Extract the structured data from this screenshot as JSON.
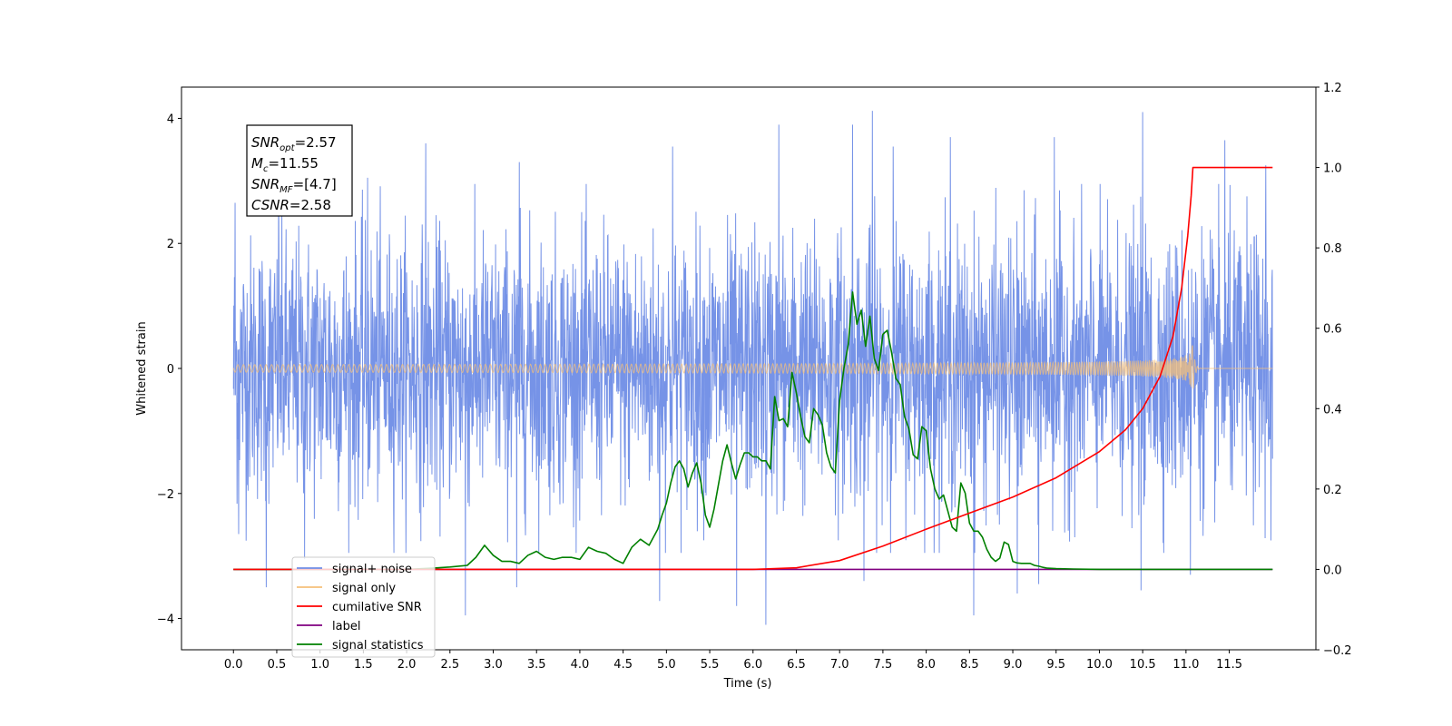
{
  "chart_data": {
    "type": "line",
    "xlabel": "Time (s)",
    "ylabel_left": "Whitened strain",
    "xlim": [
      -0.6,
      12.5
    ],
    "ylim_left": [
      -4.5,
      4.5
    ],
    "ylim_right": [
      -0.2,
      1.2
    ],
    "x_ticks": [
      0.0,
      0.5,
      1.0,
      1.5,
      2.0,
      2.5,
      3.0,
      3.5,
      4.0,
      4.5,
      5.0,
      5.5,
      6.0,
      6.5,
      7.0,
      7.5,
      8.0,
      8.5,
      9.0,
      9.5,
      10.0,
      10.5,
      11.0,
      11.5
    ],
    "x_tick_labels": [
      "0.0",
      "0.5",
      "1.0",
      "1.5",
      "2.0",
      "2.5",
      "3.0",
      "3.5",
      "4.0",
      "4.5",
      "5.0",
      "5.5",
      "6.0",
      "6.5",
      "7.0",
      "7.5",
      "8.0",
      "8.5",
      "9.0",
      "9.5",
      "10.0",
      "10.5",
      "11.0",
      "11.5"
    ],
    "y_left_ticks": [
      -4,
      -2,
      0,
      2,
      4
    ],
    "y_left_tick_labels": [
      "−4",
      "−2",
      "0",
      "2",
      "4"
    ],
    "y_right_ticks": [
      -0.2,
      0.0,
      0.2,
      0.4,
      0.6,
      0.8,
      1.0,
      1.2
    ],
    "y_right_tick_labels": [
      "−0.2",
      "0.0",
      "0.2",
      "0.4",
      "0.6",
      "0.8",
      "1.0",
      "1.2"
    ],
    "grid": false,
    "legend_position": "lower-left",
    "annotation": {
      "lines": [
        {
          "base": "SNR",
          "sub": "opt",
          "rest": "=2.57"
        },
        {
          "base": "M",
          "sub": "c",
          "rest": "=11.55"
        },
        {
          "base": "SNR",
          "sub": "MF",
          "rest": "=[4.7]"
        },
        {
          "base": "CSNR",
          "sub": "",
          "rest": "=2.58"
        }
      ]
    },
    "series": [
      {
        "name": "signal+ noise",
        "axis": "left",
        "color": "#6f8de6",
        "description_kind": "noise",
        "x_range": [
          0.0,
          12.0
        ],
        "spread": 1.05,
        "extremes": [
          {
            "x": 0.02,
            "y": 2.65
          },
          {
            "x": 0.06,
            "y": -2.65
          },
          {
            "x": 0.38,
            "y": -3.5
          },
          {
            "x": 0.52,
            "y": 2.95
          },
          {
            "x": 0.82,
            "y": -3.05
          },
          {
            "x": 1.55,
            "y": 3.05
          },
          {
            "x": 2.22,
            "y": 3.6
          },
          {
            "x": 2.68,
            "y": -3.95
          },
          {
            "x": 3.27,
            "y": -3.5
          },
          {
            "x": 3.3,
            "y": 3.3
          },
          {
            "x": 4.92,
            "y": -3.72
          },
          {
            "x": 5.07,
            "y": 3.55
          },
          {
            "x": 5.81,
            "y": -3.8
          },
          {
            "x": 6.15,
            "y": -4.1
          },
          {
            "x": 6.3,
            "y": 3.9
          },
          {
            "x": 7.15,
            "y": 3.9
          },
          {
            "x": 7.28,
            "y": -3.4
          },
          {
            "x": 7.38,
            "y": 4.12
          },
          {
            "x": 7.62,
            "y": 3.55
          },
          {
            "x": 8.28,
            "y": 3.7
          },
          {
            "x": 8.55,
            "y": -3.95
          },
          {
            "x": 9.05,
            "y": -3.6
          },
          {
            "x": 9.3,
            "y": -3.45
          },
          {
            "x": 9.48,
            "y": 3.7
          },
          {
            "x": 10.48,
            "y": -3.55
          },
          {
            "x": 10.5,
            "y": 4.1
          },
          {
            "x": 11.05,
            "y": -3.3
          },
          {
            "x": 11.45,
            "y": 3.65
          },
          {
            "x": 11.92,
            "y": 3.25
          },
          {
            "x": 11.98,
            "y": -2.75
          }
        ]
      },
      {
        "name": "signal only",
        "axis": "left",
        "color": "#f5c07a",
        "description_kind": "chirp",
        "x_range": [
          0.0,
          12.0
        ],
        "merger_x": 11.08,
        "peak_amplitude": 0.45
      },
      {
        "name": "cumilative SNR",
        "axis": "right",
        "color": "#ff0000",
        "x": [
          0.0,
          5.0,
          6.0,
          6.5,
          7.0,
          7.5,
          8.0,
          8.5,
          9.0,
          9.5,
          10.0,
          10.3,
          10.5,
          10.7,
          10.85,
          10.95,
          11.02,
          11.06,
          11.08,
          12.0
        ],
        "y": [
          0.0,
          0.0,
          0.0,
          0.004,
          0.022,
          0.058,
          0.1,
          0.14,
          0.18,
          0.228,
          0.293,
          0.347,
          0.4,
          0.48,
          0.58,
          0.7,
          0.83,
          0.93,
          1.0,
          1.0
        ]
      },
      {
        "name": "label",
        "axis": "right",
        "color": "#800080",
        "x": [
          0.0,
          12.0
        ],
        "y": [
          0.0,
          0.0
        ]
      },
      {
        "name": "signal statistics",
        "axis": "right",
        "color": "#008000",
        "x": [
          0.0,
          0.5,
          1.0,
          1.5,
          2.0,
          2.3,
          2.5,
          2.7,
          2.8,
          2.9,
          3.0,
          3.1,
          3.2,
          3.3,
          3.4,
          3.5,
          3.6,
          3.7,
          3.8,
          3.9,
          4.0,
          4.1,
          4.2,
          4.3,
          4.4,
          4.5,
          4.6,
          4.7,
          4.8,
          4.9,
          4.95,
          5.0,
          5.05,
          5.1,
          5.15,
          5.2,
          5.25,
          5.3,
          5.35,
          5.4,
          5.45,
          5.5,
          5.55,
          5.6,
          5.65,
          5.7,
          5.75,
          5.8,
          5.85,
          5.9,
          5.95,
          6.0,
          6.05,
          6.1,
          6.15,
          6.2,
          6.25,
          6.3,
          6.35,
          6.4,
          6.45,
          6.5,
          6.55,
          6.6,
          6.65,
          6.7,
          6.75,
          6.8,
          6.85,
          6.9,
          6.95,
          7.0,
          7.05,
          7.1,
          7.15,
          7.2,
          7.25,
          7.3,
          7.35,
          7.4,
          7.45,
          7.5,
          7.55,
          7.6,
          7.65,
          7.7,
          7.75,
          7.8,
          7.85,
          7.9,
          7.95,
          8.0,
          8.05,
          8.1,
          8.15,
          8.2,
          8.25,
          8.3,
          8.35,
          8.4,
          8.45,
          8.5,
          8.55,
          8.6,
          8.65,
          8.7,
          8.75,
          8.8,
          8.85,
          8.9,
          8.95,
          9.0,
          9.05,
          9.1,
          9.15,
          9.2,
          9.25,
          9.3,
          9.35,
          9.4,
          9.5,
          9.7,
          10.0,
          12.0
        ],
        "y": [
          0.0,
          0.0,
          0.0,
          0.0,
          0.0,
          0.003,
          0.006,
          0.01,
          0.03,
          0.06,
          0.035,
          0.02,
          0.02,
          0.015,
          0.035,
          0.045,
          0.03,
          0.025,
          0.03,
          0.03,
          0.025,
          0.055,
          0.045,
          0.04,
          0.025,
          0.015,
          0.055,
          0.075,
          0.06,
          0.1,
          0.135,
          0.165,
          0.215,
          0.255,
          0.27,
          0.25,
          0.205,
          0.24,
          0.265,
          0.215,
          0.135,
          0.105,
          0.15,
          0.21,
          0.27,
          0.31,
          0.265,
          0.225,
          0.26,
          0.29,
          0.29,
          0.28,
          0.28,
          0.27,
          0.27,
          0.25,
          0.43,
          0.37,
          0.375,
          0.355,
          0.49,
          0.44,
          0.38,
          0.33,
          0.315,
          0.4,
          0.385,
          0.36,
          0.29,
          0.255,
          0.24,
          0.42,
          0.5,
          0.56,
          0.69,
          0.61,
          0.645,
          0.555,
          0.63,
          0.525,
          0.495,
          0.585,
          0.595,
          0.54,
          0.475,
          0.46,
          0.38,
          0.35,
          0.285,
          0.275,
          0.355,
          0.345,
          0.25,
          0.2,
          0.175,
          0.185,
          0.145,
          0.105,
          0.095,
          0.215,
          0.19,
          0.115,
          0.095,
          0.095,
          0.08,
          0.05,
          0.03,
          0.02,
          0.028,
          0.068,
          0.062,
          0.02,
          0.016,
          0.015,
          0.015,
          0.015,
          0.01,
          0.008,
          0.005,
          0.003,
          0.002,
          0.001,
          0.0,
          0.0
        ]
      }
    ]
  }
}
